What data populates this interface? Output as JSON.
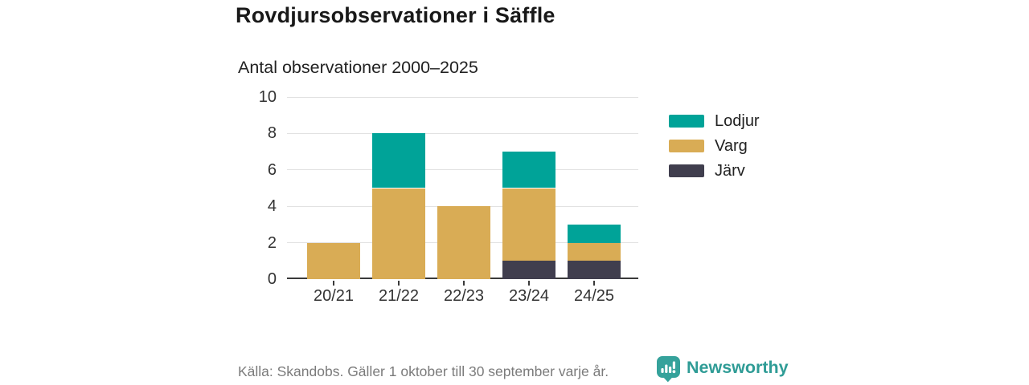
{
  "header": {
    "title": "Rovdjursobservationer i Säffle",
    "subtitle": "Antal observationer 2000–2025"
  },
  "chart_data": {
    "type": "bar",
    "stacked": true,
    "title": "Rovdjursobservationer i Säffle",
    "subtitle": "Antal observationer 2000–2025",
    "categories": [
      "20/21",
      "21/22",
      "22/23",
      "23/24",
      "24/25"
    ],
    "series": [
      {
        "name": "Lodjur",
        "color": "#00a398",
        "values": [
          0,
          3,
          0,
          2,
          1
        ]
      },
      {
        "name": "Varg",
        "color": "#d9ac55",
        "values": [
          2,
          5,
          4,
          4,
          1
        ]
      },
      {
        "name": "Järv",
        "color": "#403e4e",
        "values": [
          0,
          0,
          0,
          1,
          1
        ]
      }
    ],
    "ylim": [
      0,
      10
    ],
    "yticks": [
      0,
      2,
      4,
      6,
      8,
      10
    ],
    "grid": true,
    "legend_position": "right",
    "axis_color": "#3a3a3a",
    "gridline_color": "#e2e2e2"
  },
  "footer": {
    "source": "Källa: Skandobs. Gäller 1 oktober till 30 september varje år.",
    "brand": "Newsworthy",
    "brand_color": "#2f9c96"
  }
}
